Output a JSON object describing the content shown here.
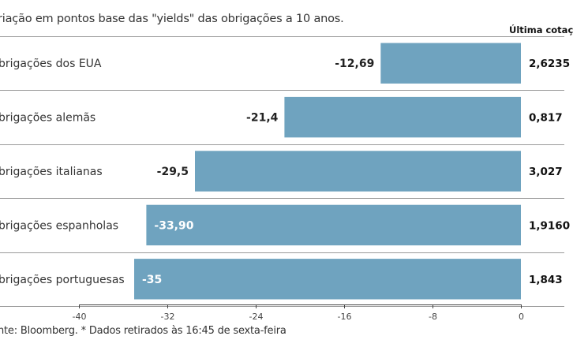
{
  "header": {
    "subtitle": "riação em pontos base das \"yields\" das obrigações a 10 anos.",
    "last_quote_label": "Última cotaç"
  },
  "footer": {
    "source": "nte: Bloomberg.  * Dados retirados às 16:45 de sexta-feira"
  },
  "colors": {
    "bar": "#6fa3bf",
    "inside_label": "#ffffff",
    "outside_label": "#222222",
    "axis": "#444444",
    "row_divider": "#999999"
  },
  "chart_data": {
    "type": "bar",
    "orientation": "horizontal",
    "categories": [
      "brigações dos EUA",
      "brigações alemãs",
      "brigações italianas",
      "brigações espanholas",
      "brigações portuguesas"
    ],
    "values": [
      -12.69,
      -21.4,
      -29.5,
      -33.9,
      -35
    ],
    "value_labels": [
      "-12,69",
      "-21,4",
      "-29,5",
      "-33,90",
      "-35"
    ],
    "label_inside": [
      false,
      false,
      false,
      true,
      true
    ],
    "last_quote": [
      "2,6235",
      "0,817",
      "3,027",
      "1,9160",
      "1,843"
    ],
    "xlim": [
      -40,
      0
    ],
    "xticks": [
      -40,
      -32,
      -24,
      -16,
      -8,
      0
    ],
    "grid": false
  }
}
